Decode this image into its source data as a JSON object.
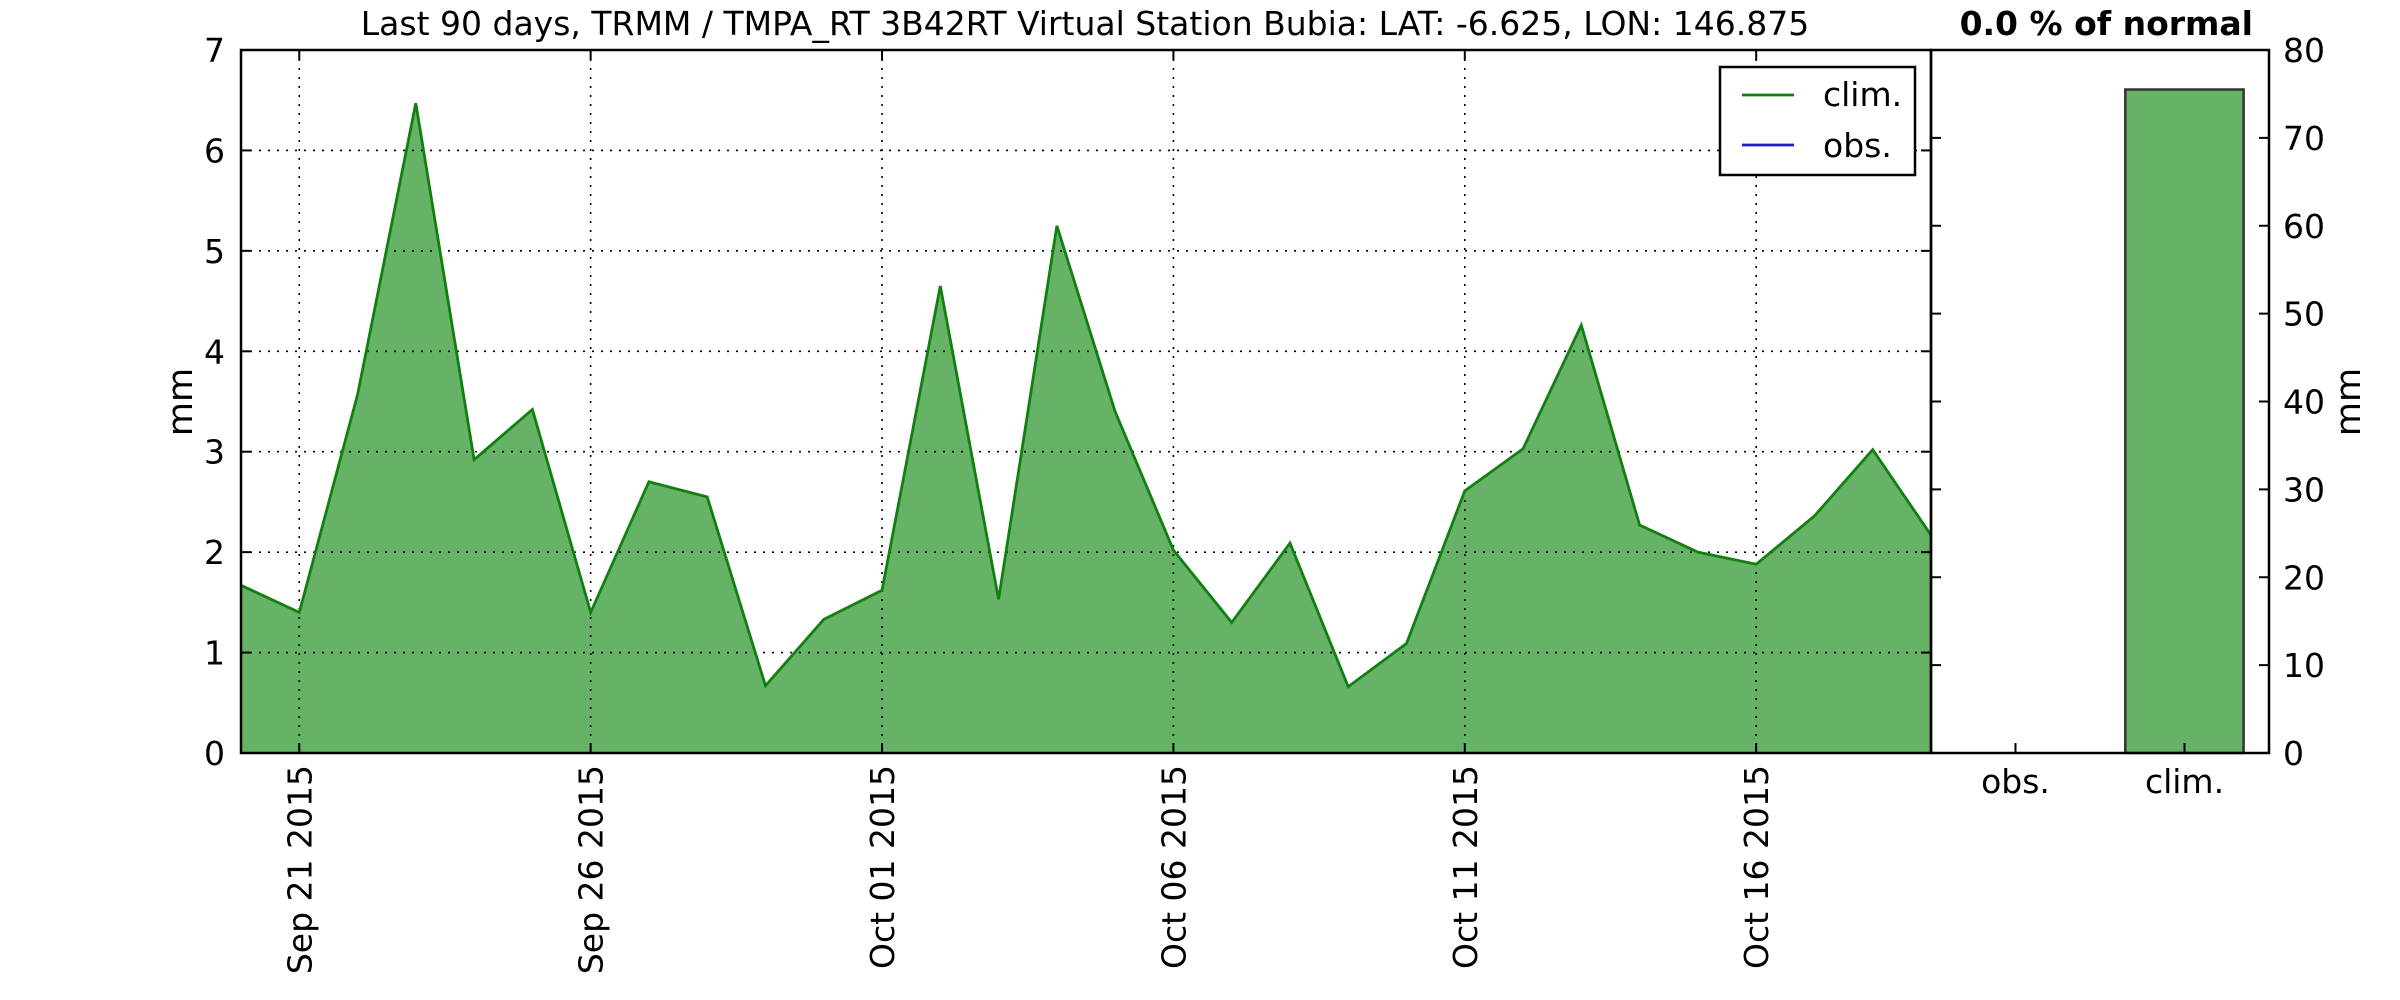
{
  "chart_data": [
    {
      "type": "area",
      "title": "Last 90 days, TRMM / TMPA_RT 3B42RT Virtual Station Bubia: LAT: -6.625, LON: 146.875",
      "ylabel": "mm",
      "xlabel": "",
      "ylim": [
        0,
        7
      ],
      "yticks": [
        "0",
        "1",
        "2",
        "3",
        "4",
        "5",
        "6",
        "7"
      ],
      "xlim": [
        "2015-09-20",
        "2015-10-19"
      ],
      "xticks": [
        {
          "date": "2015-09-21",
          "label": "Sep 21 2015"
        },
        {
          "date": "2015-09-26",
          "label": "Sep 26 2015"
        },
        {
          "date": "2015-10-01",
          "label": "Oct 01 2015"
        },
        {
          "date": "2015-10-06",
          "label": "Oct 06 2015"
        },
        {
          "date": "2015-10-11",
          "label": "Oct 11 2015"
        },
        {
          "date": "2015-10-16",
          "label": "Oct 16 2015"
        }
      ],
      "grid": true,
      "legend": {
        "placement": "top-right",
        "entries": [
          {
            "label": "clim.",
            "color": "#118011"
          },
          {
            "label": "obs.",
            "color": "#1a1acc"
          }
        ]
      },
      "series": [
        {
          "name": "clim.",
          "color": "#118011",
          "fill": "#66b266",
          "x": [
            "2015-09-20",
            "2015-09-21",
            "2015-09-22",
            "2015-09-23",
            "2015-09-24",
            "2015-09-25",
            "2015-09-26",
            "2015-09-27",
            "2015-09-28",
            "2015-09-29",
            "2015-09-30",
            "2015-10-01",
            "2015-10-02",
            "2015-10-03",
            "2015-10-04",
            "2015-10-05",
            "2015-10-06",
            "2015-10-07",
            "2015-10-08",
            "2015-10-09",
            "2015-10-10",
            "2015-10-11",
            "2015-10-12",
            "2015-10-13",
            "2015-10-14",
            "2015-10-15",
            "2015-10-16",
            "2015-10-17",
            "2015-10-18",
            "2015-10-19"
          ],
          "values": [
            1.67,
            1.4,
            3.57,
            6.47,
            2.92,
            3.42,
            1.4,
            2.7,
            2.55,
            0.67,
            1.33,
            1.62,
            4.65,
            1.53,
            5.25,
            3.4,
            2.02,
            1.3,
            2.09,
            0.66,
            1.09,
            2.61,
            3.03,
            4.26,
            2.27,
            2.0,
            1.88,
            2.36,
            3.02,
            2.17
          ]
        },
        {
          "name": "obs.",
          "color": "#1a1acc",
          "x": [],
          "values": []
        }
      ]
    },
    {
      "type": "bar",
      "title": "0.0 % of normal",
      "ylabel": "mm",
      "ylim": [
        0,
        80
      ],
      "yticks": [
        "0",
        "10",
        "20",
        "30",
        "40",
        "50",
        "60",
        "70",
        "80"
      ],
      "categories": [
        "obs.",
        "clim."
      ],
      "values": [
        0,
        75.5
      ],
      "fill": "#66b266",
      "edge": "#333333"
    }
  ]
}
